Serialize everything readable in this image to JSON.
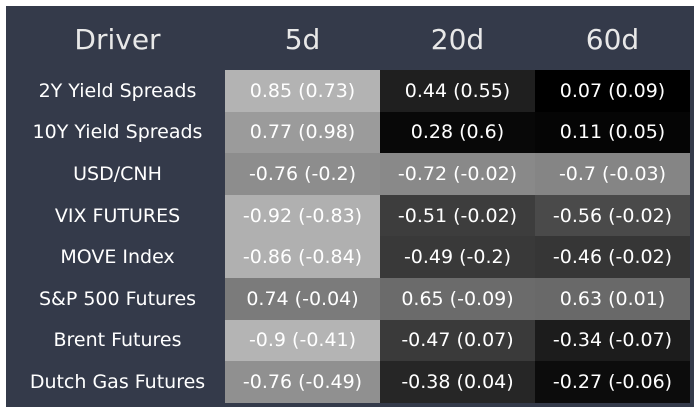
{
  "table": {
    "header": [
      "Driver",
      "5d",
      "20d",
      "60d"
    ],
    "rows": [
      {
        "driver": "2Y Yield Spreads",
        "cells": [
          "0.85 (0.73)",
          "0.44 (0.55)",
          "0.07 (0.09)"
        ],
        "colors": [
          "#b3b3b3",
          "#1f1f1f",
          "#000000"
        ]
      },
      {
        "driver": "10Y Yield Spreads",
        "cells": [
          "0.77 (0.98)",
          "0.28 (0.6)",
          "0.11 (0.05)"
        ],
        "colors": [
          "#9b9b9b",
          "#080808",
          "#050505"
        ]
      },
      {
        "driver": "USD/CNH",
        "cells": [
          "-0.76 (-0.2)",
          "-0.72 (-0.02)",
          "-0.7 (-0.03)"
        ],
        "colors": [
          "#8d8d8d",
          "#898989",
          "#858585"
        ]
      },
      {
        "driver": "VIX FUTURES",
        "cells": [
          "-0.92 (-0.83)",
          "-0.51 (-0.02)",
          "-0.56 (-0.02)"
        ],
        "colors": [
          "#b0b0b0",
          "#3d3d3d",
          "#4a4a4a"
        ]
      },
      {
        "driver": "MOVE Index",
        "cells": [
          "-0.86 (-0.84)",
          "-0.49 (-0.2)",
          "-0.46 (-0.02)"
        ],
        "colors": [
          "#b0b0b0",
          "#393939",
          "#363636"
        ]
      },
      {
        "driver": "S&P 500 Futures",
        "cells": [
          "0.74 (-0.04)",
          "0.65 (-0.09)",
          "0.63 (0.01)"
        ],
        "colors": [
          "#7b7b7b",
          "#6b6b6b",
          "#696969"
        ]
      },
      {
        "driver": "Brent Futures",
        "cells": [
          "-0.9 (-0.41)",
          "-0.47 (0.07)",
          "-0.34 (-0.07)"
        ],
        "colors": [
          "#b4b4b4",
          "#3a3a3a",
          "#1c1c1c"
        ]
      },
      {
        "driver": "Dutch Gas Futures",
        "cells": [
          "-0.76 (-0.49)",
          "-0.38 (0.04)",
          "-0.27 (-0.06)"
        ],
        "colors": [
          "#909090",
          "#262626",
          "#0c0c0c"
        ]
      }
    ]
  }
}
